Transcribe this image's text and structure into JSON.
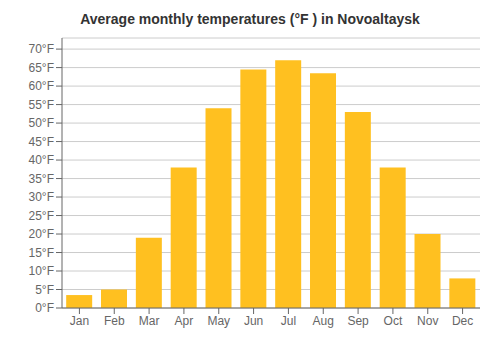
{
  "chart_data": {
    "type": "bar",
    "title": "Average monthly temperatures (°F ) in Novoaltaysk",
    "categories": [
      "Jan",
      "Feb",
      "Mar",
      "Apr",
      "May",
      "Jun",
      "Jul",
      "Aug",
      "Sep",
      "Oct",
      "Nov",
      "Dec"
    ],
    "values": [
      3.5,
      5,
      19,
      38,
      54,
      64.5,
      67,
      63.5,
      53,
      38,
      20,
      8
    ],
    "color": "#FFC020",
    "ylim": [
      0,
      73
    ],
    "yticks": [
      {
        "value": 0,
        "label": "0°F"
      },
      {
        "value": 5,
        "label": "5°F"
      },
      {
        "value": 10,
        "label": "10°F"
      },
      {
        "value": 15,
        "label": "15°F"
      },
      {
        "value": 20,
        "label": "20°F"
      },
      {
        "value": 25,
        "label": "25°F"
      },
      {
        "value": 30,
        "label": "30°F"
      },
      {
        "value": 35,
        "label": "35°F"
      },
      {
        "value": 40,
        "label": "40°F"
      },
      {
        "value": 45,
        "label": "45°F"
      },
      {
        "value": 50,
        "label": "50°F"
      },
      {
        "value": 55,
        "label": "55°F"
      },
      {
        "value": 60,
        "label": "60°F"
      },
      {
        "value": 65,
        "label": "65°F"
      },
      {
        "value": 70,
        "label": "70°F"
      }
    ],
    "grid": true
  }
}
